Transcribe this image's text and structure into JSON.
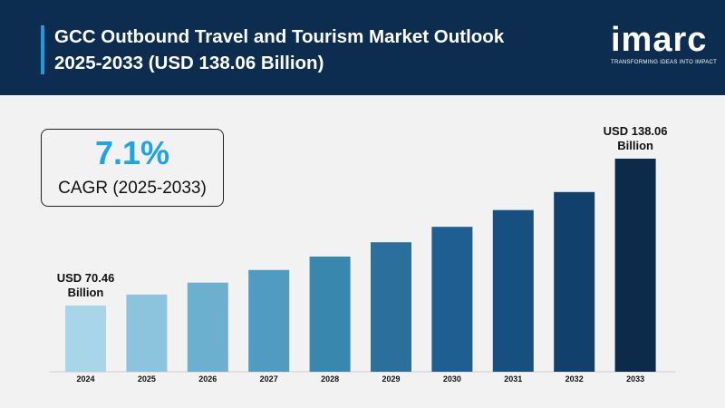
{
  "header": {
    "title_line1": "GCC Outbound Travel and Tourism Market Outlook",
    "title_line2": "2025-2033 (USD 138.06 Billion)",
    "logo_text": "imarc",
    "logo_tagline": "TRANSFORMING IDEAS INTO IMPACT"
  },
  "cagr": {
    "value": "7.1%",
    "label": "CAGR (2025-2033)"
  },
  "colors": {
    "header_bg": "#0c2d4f",
    "accent": "#1e9be0",
    "cagr_value": "#1ea3e6",
    "background": "#f2f2f2"
  },
  "chart_data": {
    "type": "bar",
    "title": "",
    "xlabel": "",
    "ylabel": "",
    "categories": [
      "2024",
      "2025",
      "2026",
      "2027",
      "2028",
      "2029",
      "2030",
      "2031",
      "2032",
      "2033"
    ],
    "values": [
      70.46,
      75.5,
      81.0,
      86.8,
      93.0,
      99.6,
      106.7,
      114.4,
      122.7,
      138.06
    ],
    "ylim": [
      40,
      150
    ],
    "grid": false,
    "bar_colors": [
      "#a9d5e8",
      "#8cc3dd",
      "#6cafcf",
      "#4f9cc0",
      "#3787ae",
      "#2b709d",
      "#1e5e90",
      "#164f80",
      "#11406d",
      "#0c2a4a"
    ],
    "annotations": [
      {
        "category": "2024",
        "line1": "USD 70.46",
        "line2": "Billion"
      },
      {
        "category": "2033",
        "line1": "USD 138.06",
        "line2": "Billion"
      }
    ]
  }
}
